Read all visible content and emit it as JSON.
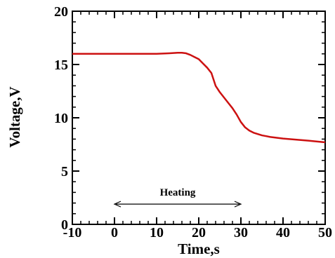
{
  "chart_data": {
    "type": "line",
    "xlabel": "Time,s",
    "ylabel": "Voltage,V",
    "xlim": [
      -10,
      50
    ],
    "ylim": [
      0,
      20
    ],
    "x_major_ticks": [
      -10,
      0,
      10,
      20,
      30,
      40,
      50
    ],
    "x_tick_labels": [
      "-10",
      "0",
      "10",
      "20",
      "30",
      "40",
      "50"
    ],
    "y_major_ticks": [
      0,
      5,
      10,
      15,
      20
    ],
    "y_tick_labels": [
      "0",
      "5",
      "10",
      "15",
      "20"
    ],
    "x_minor_step": 2,
    "y_minor_step": 1,
    "grid": false,
    "series": [
      {
        "color": "#cc1111",
        "x": [
          -10,
          -5,
          0,
          5,
          10,
          13,
          15,
          16,
          17,
          18,
          19,
          20,
          21,
          22,
          23,
          24,
          25,
          26,
          27,
          28,
          29,
          30,
          31,
          32,
          33,
          35,
          37,
          40,
          43,
          46,
          50
        ],
        "y": [
          16.0,
          16.0,
          16.0,
          16.0,
          16.0,
          16.05,
          16.1,
          16.1,
          16.05,
          15.9,
          15.7,
          15.5,
          15.1,
          14.7,
          14.2,
          13.0,
          12.4,
          11.9,
          11.4,
          10.9,
          10.3,
          9.6,
          9.1,
          8.8,
          8.6,
          8.35,
          8.2,
          8.05,
          7.95,
          7.85,
          7.7
        ]
      }
    ],
    "annotations": [
      {
        "text": "Heating",
        "arrow_from_x": 0,
        "arrow_to_x": 30,
        "y": 1.9
      }
    ]
  }
}
